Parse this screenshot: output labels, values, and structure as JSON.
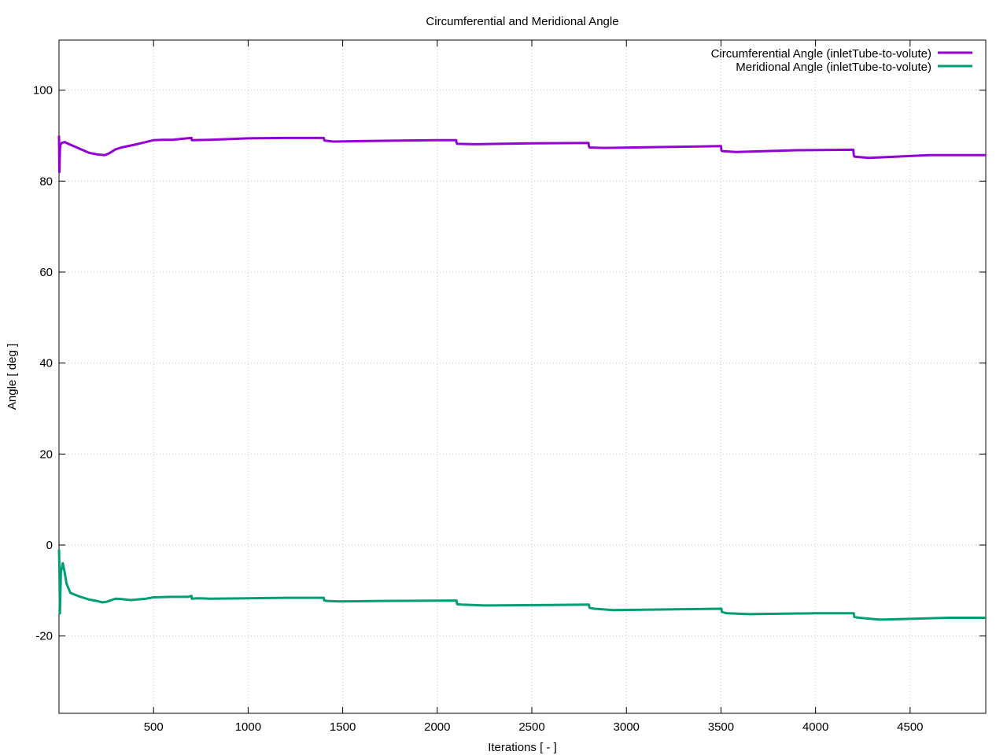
{
  "chart_data": {
    "type": "line",
    "title": "Circumferential and Meridional Angle",
    "xlabel": "Iterations [ - ]",
    "ylabel": "Angle [ deg ]",
    "xlim": [
      0,
      4900
    ],
    "ylim": [
      -37,
      111
    ],
    "xticks": [
      500,
      1000,
      1500,
      2000,
      2500,
      3000,
      3500,
      4000,
      4500
    ],
    "yticks": [
      -20,
      0,
      20,
      40,
      60,
      80,
      100
    ],
    "grid": true,
    "legend_position": "top-right",
    "series": [
      {
        "name": "Circumferential Angle (inletTube-to-volute)",
        "color": "#9400d3",
        "x": [
          0,
          2,
          5,
          8,
          15,
          30,
          60,
          100,
          160,
          200,
          240,
          260,
          300,
          330,
          400,
          460,
          500,
          550,
          600,
          650,
          700,
          701,
          702,
          800,
          1000,
          1200,
          1398,
          1400,
          1402,
          1405,
          1450,
          1600,
          2000,
          2098,
          2100,
          2102,
          2105,
          2200,
          2500,
          2798,
          2800,
          2802,
          2805,
          2880,
          3200,
          3498,
          3500,
          3502,
          3505,
          3580,
          3900,
          4198,
          4200,
          4202,
          4205,
          4280,
          4600,
          4900
        ],
        "y": [
          90,
          82,
          87,
          88,
          88.4,
          88.6,
          88,
          87.3,
          86.2,
          85.9,
          85.7,
          86,
          87,
          87.4,
          88,
          88.6,
          89,
          89.1,
          89.1,
          89.3,
          89.5,
          89.5,
          89,
          89.1,
          89.4,
          89.5,
          89.5,
          89.5,
          89,
          88.9,
          88.7,
          88.8,
          89,
          89,
          89,
          88.4,
          88.2,
          88.1,
          88.3,
          88.4,
          88.4,
          87.6,
          87.4,
          87.3,
          87.5,
          87.7,
          87.7,
          86.9,
          86.6,
          86.4,
          86.8,
          86.9,
          86.9,
          85.8,
          85.4,
          85.1,
          85.7,
          85.7
        ]
      },
      {
        "name": "Meridional Angle (inletTube-to-volute)",
        "color": "#009e73",
        "x": [
          0,
          2,
          5,
          10,
          20,
          30,
          40,
          60,
          100,
          160,
          200,
          230,
          250,
          300,
          330,
          380,
          460,
          500,
          600,
          680,
          700,
          701,
          702,
          730,
          800,
          1000,
          1200,
          1398,
          1400,
          1402,
          1405,
          1420,
          1480,
          1700,
          2098,
          2100,
          2102,
          2105,
          2130,
          2250,
          2600,
          2798,
          2800,
          2802,
          2805,
          2830,
          2930,
          3300,
          3498,
          3500,
          3502,
          3505,
          3530,
          3650,
          4000,
          4198,
          4200,
          4202,
          4205,
          4230,
          4340,
          4700,
          4900
        ],
        "y": [
          -1,
          -5,
          -15,
          -6,
          -4,
          -6,
          -8.5,
          -10.5,
          -11.2,
          -12,
          -12.3,
          -12.6,
          -12.5,
          -11.8,
          -11.9,
          -12.1,
          -11.8,
          -11.5,
          -11.4,
          -11.4,
          -11.2,
          -11.2,
          -11.8,
          -11.7,
          -11.8,
          -11.7,
          -11.6,
          -11.6,
          -11.6,
          -12.2,
          -12.2,
          -12.3,
          -12.4,
          -12.3,
          -12.2,
          -12.2,
          -12.2,
          -13,
          -13.1,
          -13.3,
          -13.2,
          -13.1,
          -13.1,
          -13.1,
          -13.8,
          -14,
          -14.3,
          -14.1,
          -14,
          -14,
          -14,
          -14.7,
          -15,
          -15.2,
          -15,
          -15,
          -15,
          -15,
          -15.8,
          -16,
          -16.4,
          -16,
          -16
        ]
      }
    ]
  }
}
